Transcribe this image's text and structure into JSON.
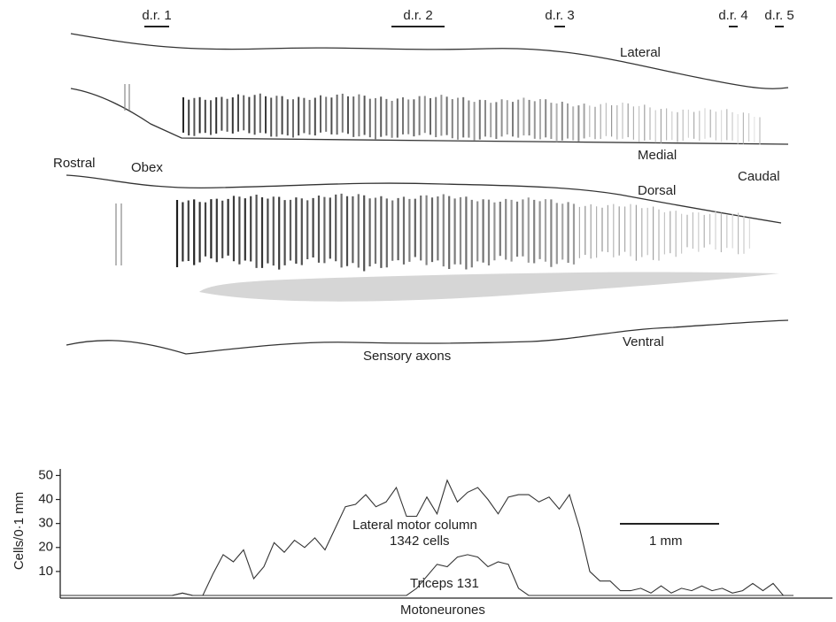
{
  "diagram": {
    "roots": [
      "d.r. 1",
      "d.r. 2",
      "d.r. 3",
      "d.r. 4",
      "d.r. 5"
    ],
    "labels": {
      "lateral": "Lateral",
      "obex": "Obex",
      "medial": "Medial",
      "rostral": "Rostral",
      "caudal": "Caudal",
      "dorsal": "Dorsal",
      "ventral": "Ventral",
      "sensory": "Sensory axons"
    },
    "scale_bar": "1 mm"
  },
  "chart_data": {
    "type": "line",
    "y_label": "Cells/0·1 mm",
    "x_label": "Motoneurones",
    "annotation": "1342 cells",
    "categories": [
      null,
      null,
      null,
      null,
      null,
      null,
      null,
      null,
      null,
      null,
      null,
      null,
      null,
      null,
      null,
      null,
      null,
      null,
      null,
      null,
      null,
      null,
      null,
      null,
      null,
      null,
      null,
      null,
      null,
      null,
      null,
      null,
      null,
      null,
      null,
      null,
      null,
      null,
      null,
      null,
      null,
      null,
      null,
      null,
      null,
      null,
      null,
      null,
      null,
      null,
      null,
      null,
      null,
      null,
      null,
      null,
      null,
      null,
      null,
      null,
      null,
      null,
      null,
      null,
      null,
      null,
      null,
      null,
      null,
      null,
      null,
      null,
      null
    ],
    "series": [
      {
        "name": "Lateral motor column",
        "color": "#333333",
        "values": [
          0,
          0,
          0,
          0,
          0,
          0,
          0,
          0,
          0,
          0,
          0,
          0,
          1,
          0,
          0,
          9,
          17,
          14,
          19,
          7,
          12,
          22,
          18,
          23,
          20,
          24,
          19,
          28,
          37,
          38,
          42,
          37,
          39,
          45,
          33,
          33,
          41,
          34,
          48,
          39,
          43,
          45,
          40,
          34,
          41,
          42,
          42,
          39,
          41,
          36,
          42,
          28,
          10,
          6,
          6,
          2,
          2,
          3,
          1,
          4,
          1,
          3,
          2,
          4,
          2,
          3,
          1,
          2,
          5,
          2,
          5,
          0,
          0
        ]
      },
      {
        "name": "Triceps 131",
        "color": "#333333",
        "values": [
          0,
          0,
          0,
          0,
          0,
          0,
          0,
          0,
          0,
          0,
          0,
          0,
          1,
          0,
          0,
          0,
          0,
          0,
          0,
          0,
          0,
          0,
          0,
          0,
          0,
          0,
          0,
          0,
          0,
          0,
          0,
          0,
          0,
          0,
          0,
          3,
          8,
          13,
          12,
          16,
          17,
          16,
          12,
          14,
          13,
          3,
          0,
          0,
          0,
          0,
          0,
          0,
          0,
          0,
          0,
          0,
          0,
          0,
          0,
          0,
          0,
          0,
          0,
          0,
          0,
          0,
          0,
          0,
          0,
          0,
          0,
          0,
          0
        ]
      }
    ],
    "ylim": [
      0,
      52
    ],
    "yticks": [
      10,
      20,
      30,
      40,
      50
    ]
  }
}
